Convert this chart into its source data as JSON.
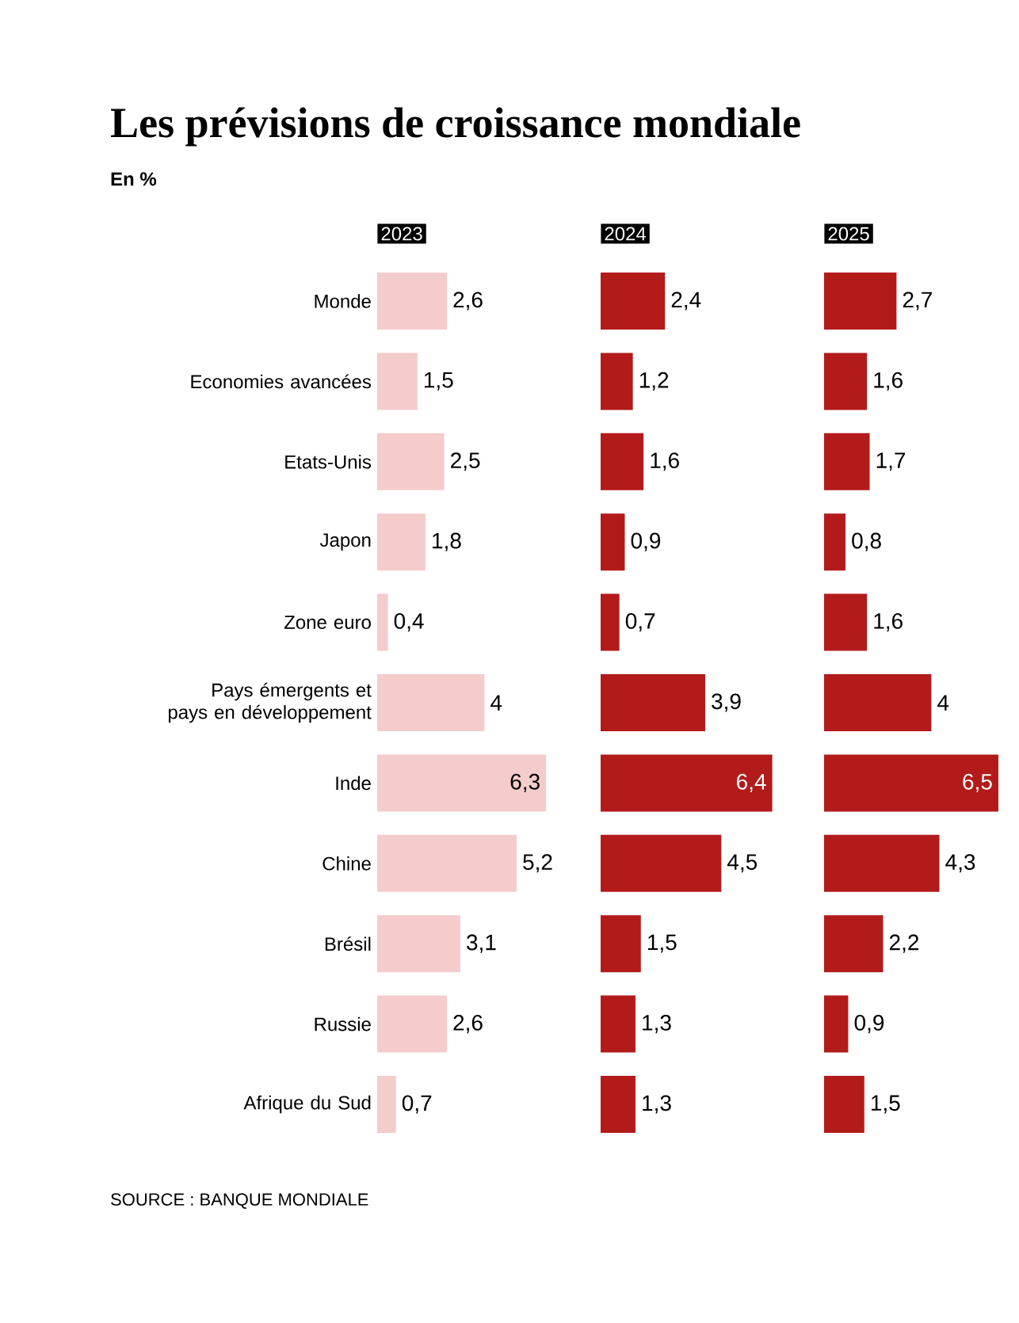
{
  "chart_data": [
    {
      "type": "bar",
      "orientation": "horizontal",
      "title": "Les prévisions de croissance mondiale",
      "subtitle": "En %",
      "xlabel": "2023",
      "categories": [
        "Monde",
        "Economies avancées",
        "Etats-Unis",
        "Japon",
        "Zone euro",
        "Pays émergents et pays en développement",
        "Inde",
        "Chine",
        "Brésil",
        "Russie",
        "Afrique du Sud"
      ],
      "color": "#f4cccc",
      "values": [
        2.6,
        1.5,
        2.5,
        1.8,
        0.4,
        4,
        6.3,
        5.2,
        3.1,
        2.6,
        0.7
      ],
      "value_labels": [
        "2,6",
        "1,5",
        "2,5",
        "1,8",
        "0,4",
        "4",
        "6,3",
        "5,2",
        "3,1",
        "2,6",
        "0,7"
      ],
      "xlim": [
        0,
        6.5
      ],
      "tick_labels": "y",
      "annotations": [
        "SOURCE : BANQUE MONDIALE"
      ]
    },
    {
      "type": "bar",
      "orientation": "horizontal",
      "xlabel": "2024",
      "categories": [
        null,
        null,
        null,
        null,
        null,
        null,
        null,
        null,
        null,
        null,
        null
      ],
      "color": "#b31b1b",
      "values": [
        2.4,
        1.2,
        1.6,
        0.9,
        0.7,
        3.9,
        6.4,
        4.5,
        1.5,
        1.3,
        1.3
      ],
      "value_labels": [
        "2,4",
        "1,2",
        "1,6",
        "0,9",
        "0,7",
        "3,9",
        "6,4",
        "4,5",
        "1,5",
        "1,3",
        "1,3"
      ],
      "xlim": [
        0,
        6.5
      ],
      "tick_labels": false
    },
    {
      "type": "bar",
      "orientation": "horizontal",
      "xlabel": "2025",
      "categories": [
        null,
        null,
        null,
        null,
        null,
        null,
        null,
        null,
        null,
        null,
        null
      ],
      "color": "#b31b1b",
      "values": [
        2.7,
        1.6,
        1.7,
        0.8,
        1.6,
        4,
        6.5,
        4.3,
        2.2,
        0.9,
        1.5
      ],
      "value_labels": [
        "2,7",
        "1,6",
        "1,7",
        "0,8",
        "1,6",
        "4",
        "6,5",
        "4,3",
        "2,2",
        "0,9",
        "1,5"
      ],
      "xlim": [
        0,
        6.5
      ],
      "tick_labels": false
    }
  ]
}
